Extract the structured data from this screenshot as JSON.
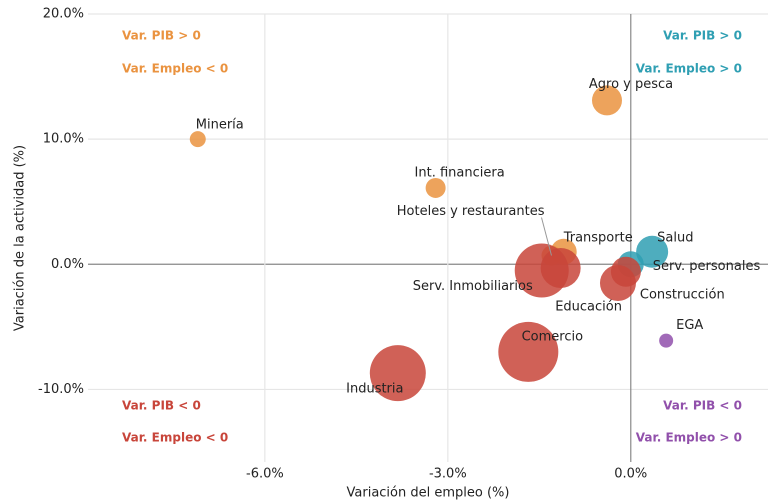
{
  "chart_data": {
    "type": "scatter",
    "x_label": "Variación del empleo (%)",
    "y_label": "Variación de la actividad (%)",
    "xlim": [
      -8.9,
      2.25
    ],
    "ylim": [
      -15.8,
      20
    ],
    "xticks": [
      {
        "value": -6,
        "label": "-6.0%"
      },
      {
        "value": -3,
        "label": "-3.0%"
      },
      {
        "value": 0,
        "label": "0.0%"
      }
    ],
    "yticks": [
      {
        "value": -10,
        "label": "-10.0%"
      },
      {
        "value": 0,
        "label": "0.0%"
      },
      {
        "value": 10,
        "label": "10.0%"
      },
      {
        "value": 20,
        "label": "20.0%"
      }
    ],
    "grid": true,
    "categories": [
      "Minería",
      "Agro y pesca",
      "Int. financiera",
      "Hoteles y restaurantes",
      "Transporte",
      "Salud",
      "Serv. personales",
      "Construcción",
      "Educación",
      "Serv. Inmobiliarios",
      null,
      "Comercio",
      "Industria",
      "EGA"
    ],
    "x": [
      -7.1,
      -0.39,
      -3.2,
      -1.3,
      -1.1,
      0.35,
      0.0,
      -0.08,
      -0.21,
      -1.46,
      -1.15,
      -1.68,
      -3.82,
      0.58
    ],
    "values": [
      10.0,
      13.1,
      6.1,
      0.7,
      1.0,
      1.0,
      0.0,
      -0.6,
      -1.5,
      -0.5,
      -0.3,
      -7.0,
      -8.7,
      -6.1
    ],
    "sizes": [
      8,
      15,
      10,
      10,
      13,
      16,
      13,
      15,
      18,
      27,
      20,
      30,
      28,
      7
    ],
    "colors": [
      "#ea9340",
      "#ea9340",
      "#ea9340",
      "#ea9340",
      "#ea9340",
      "#2f9fb3",
      "#2f9fb3",
      "#c8453a",
      "#c8453a",
      "#c8453a",
      "#c8453a",
      "#c8453a",
      "#c8453a",
      "#9150ab"
    ],
    "annotations": [
      {
        "text": "Var. PIB > 0",
        "color": "#ea9340"
      },
      {
        "text": "Var. Empleo < 0",
        "color": "#ea9340"
      },
      {
        "text": "Var. PIB > 0",
        "color": "#2f9fb3"
      },
      {
        "text": "Var. Empleo > 0",
        "color": "#2f9fb3"
      },
      {
        "text": "Var. PIB < 0",
        "color": "#c8453a"
      },
      {
        "text": "Var. Empleo < 0",
        "color": "#c8453a"
      },
      {
        "text": "Var. PIB < 0",
        "color": "#9150ab"
      },
      {
        "text": "Var. Empleo > 0",
        "color": "#9150ab"
      }
    ]
  }
}
